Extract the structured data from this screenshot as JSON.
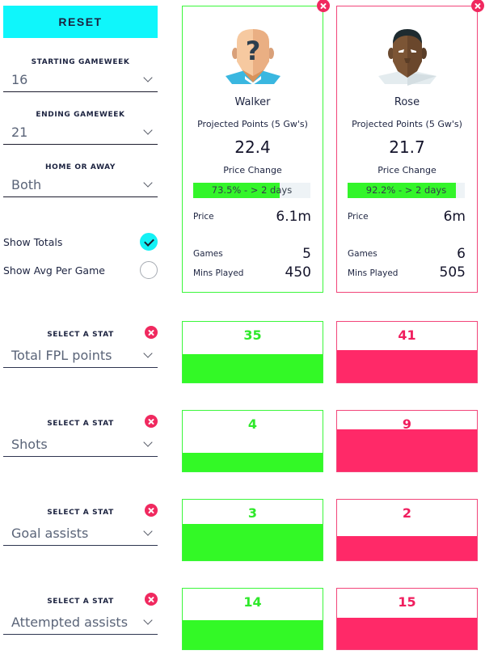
{
  "sidebar": {
    "reset_label": "RESET",
    "starting_gameweek": {
      "label": "STARTING GAMEWEEK",
      "value": "16"
    },
    "ending_gameweek": {
      "label": "ENDING GAMEWEEK",
      "value": "21"
    },
    "home_or_away": {
      "label": "HOME OR AWAY",
      "value": "Both"
    },
    "show_totals": {
      "label": "Show Totals",
      "checked": true
    },
    "show_avg": {
      "label": "Show Avg Per Game",
      "checked": false
    }
  },
  "colors": {
    "player1": "#3bf73b",
    "player2": "#f2457a",
    "accent": "#0ff6fb"
  },
  "players": [
    {
      "name": "Walker",
      "avatar": "unknown-player-icon",
      "projected_label": "Projected Points (5 Gw's)",
      "projected_points": "22.4",
      "price_change_label": "Price Change",
      "price_change_text": "73.5% - > 2 days",
      "price_change_pct": 73.5,
      "price_label": "Price",
      "price": "6.1m",
      "games_label": "Games",
      "games": "5",
      "mins_label": "Mins Played",
      "mins": "450"
    },
    {
      "name": "Rose",
      "avatar": "player-face-icon",
      "projected_label": "Projected Points (5 Gw's)",
      "projected_points": "21.7",
      "price_change_label": "Price Change",
      "price_change_text": "92.2% - > 2 days",
      "price_change_pct": 92.2,
      "price_label": "Price",
      "price": "6m",
      "games_label": "Games",
      "games": "6",
      "mins_label": "Mins Played",
      "mins": "505"
    }
  ],
  "stats": [
    {
      "label": "SELECT A STAT",
      "stat": "Total FPL points",
      "values": [
        35,
        41
      ]
    },
    {
      "label": "SELECT A STAT",
      "stat": "Shots",
      "values": [
        4,
        9
      ]
    },
    {
      "label": "SELECT A STAT",
      "stat": "Goal assists",
      "values": [
        3,
        2
      ]
    },
    {
      "label": "SELECT A STAT",
      "stat": "Attempted assists",
      "values": [
        14,
        15
      ]
    }
  ]
}
